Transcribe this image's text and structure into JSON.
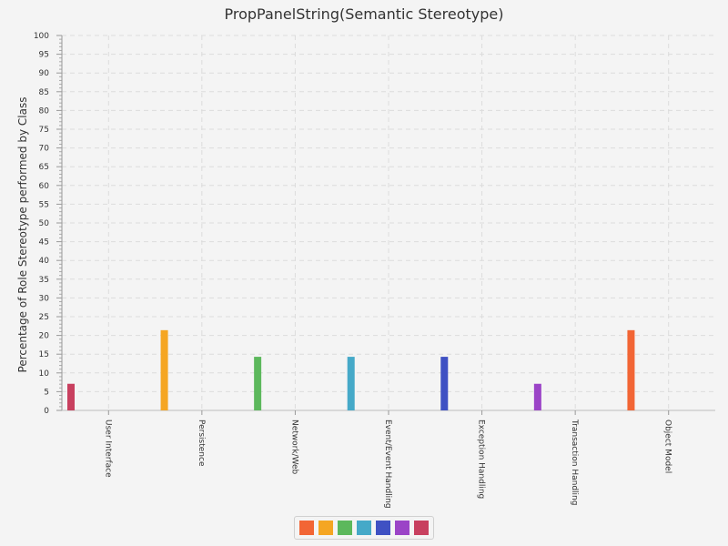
{
  "chart_data": {
    "type": "bar",
    "title": "PropPanelString(Semantic Stereotype)",
    "xlabel": "",
    "ylabel": "Percentage of Role Stereotype performed by Class",
    "ylim": [
      0,
      100
    ],
    "ytick_step": 5,
    "categories": [
      "User Interface",
      "Persistence",
      "Network/Web",
      "Event/Event Handling",
      "Exception Handling",
      "Transaction Handling",
      "Object Model"
    ],
    "series": [
      {
        "color": "#f26535",
        "values": [
          0,
          0,
          0,
          0,
          0,
          0,
          21.4
        ]
      },
      {
        "color": "#f5a623",
        "values": [
          0,
          21.4,
          0,
          0,
          0,
          0,
          0
        ]
      },
      {
        "color": "#5cb85c",
        "values": [
          0,
          0,
          14.3,
          0,
          0,
          0,
          0
        ]
      },
      {
        "color": "#45a9c8",
        "values": [
          0,
          0,
          0,
          14.3,
          0,
          0,
          0
        ]
      },
      {
        "color": "#3f51c3",
        "values": [
          0,
          0,
          0,
          0,
          14.3,
          0,
          0
        ]
      },
      {
        "color": "#9b44c7",
        "values": [
          0,
          0,
          0,
          0,
          0,
          7.1,
          0
        ]
      },
      {
        "color": "#c8405f",
        "values": [
          7.1,
          0,
          0,
          0,
          0,
          0,
          0
        ]
      }
    ],
    "grid": true,
    "legend_position": "bottom-center"
  }
}
